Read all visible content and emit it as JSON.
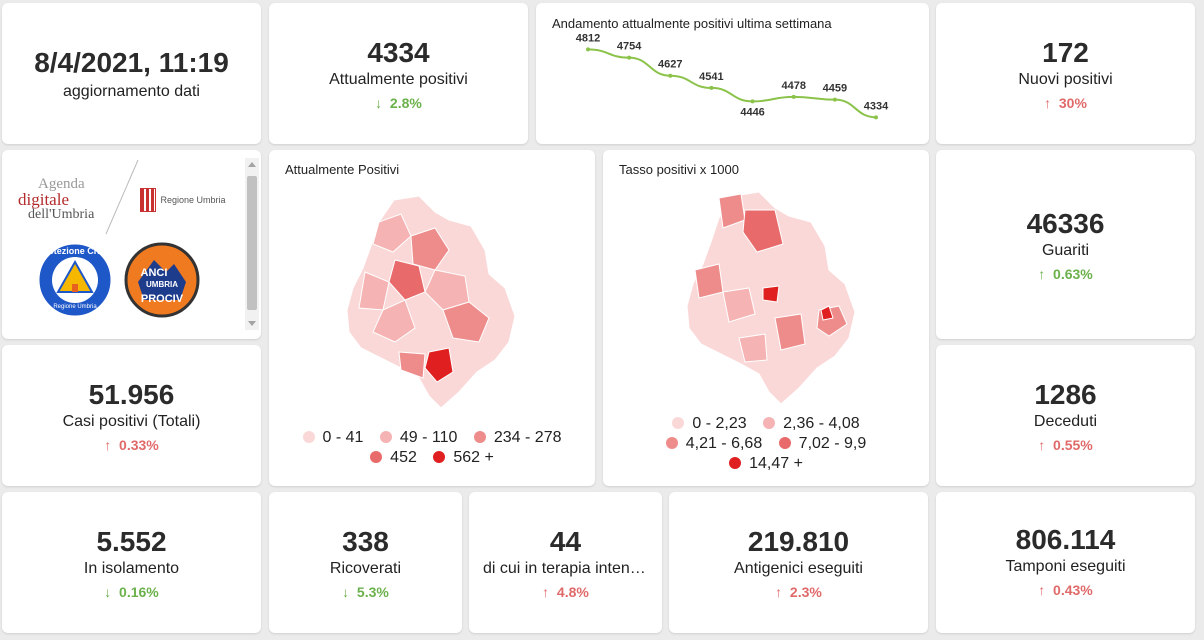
{
  "update": {
    "datetime": "8/4/2021, 11:19",
    "label": "aggiornamento dati"
  },
  "kpis": {
    "attualmente": {
      "value": "4334",
      "label": "Attualmente positivi",
      "change": "2.8%",
      "arrow": "↓"
    },
    "nuovi": {
      "value": "172",
      "label": "Nuovi positivi",
      "change": "30%",
      "arrow": "↑"
    },
    "guariti": {
      "value": "46336",
      "label": "Guariti",
      "change": "0.63%",
      "arrow": "↑"
    },
    "casi": {
      "value": "51.956",
      "label": "Casi positivi (Totali)",
      "change": "0.33%",
      "arrow": "↑"
    },
    "deceduti": {
      "value": "1286",
      "label": "Deceduti",
      "change": "0.55%",
      "arrow": "↑"
    },
    "isolamento": {
      "value": "5.552",
      "label": "In isolamento",
      "change": "0.16%",
      "arrow": "↓"
    },
    "ricoverati": {
      "value": "338",
      "label": "Ricoverati",
      "change": "5.3%",
      "arrow": "↓"
    },
    "terapia": {
      "value": "44",
      "label": "di cui in terapia intensiva",
      "change": "4.8%",
      "arrow": "↑"
    },
    "antigenici": {
      "value": "219.810",
      "label": "Antigenici eseguiti",
      "change": "2.3%",
      "arrow": "↑"
    },
    "tamponi": {
      "value": "806.114",
      "label": "Tamponi eseguiti",
      "change": "0.43%",
      "arrow": "↑"
    }
  },
  "chart_data": {
    "type": "line",
    "title": "Andamento attualmente positivi ultima settimana",
    "x": [
      1,
      2,
      3,
      4,
      5,
      6,
      7,
      8
    ],
    "values": [
      4812,
      4754,
      4627,
      4541,
      4446,
      4478,
      4459,
      4334
    ],
    "labels": [
      "4812",
      "4754",
      "4627",
      "4541",
      "4446",
      "4478",
      "4459",
      "4334"
    ],
    "color": "#8bc34a",
    "grid": false
  },
  "logos": {
    "agenda_line1": "Agenda",
    "agenda_line2": "digitale",
    "agenda_line3": "dell'Umbria",
    "regione": "Regione Umbria",
    "protezione": "Protezione Civile",
    "protezione_sub": "Regione Umbria",
    "anci1": "ANCI",
    "anci2": "UMBRIA",
    "anci3": "PROCIV"
  },
  "map1": {
    "title": "Attualmente Positivi",
    "legend": [
      {
        "label": "0 - 41",
        "color": "#fbd8d8"
      },
      {
        "label": "49 - 110",
        "color": "#f6b3b3"
      },
      {
        "label": "234 - 278",
        "color": "#ee8c8c"
      },
      {
        "label": "452",
        "color": "#e86a6a"
      },
      {
        "label": "562 +",
        "color": "#e02020"
      }
    ]
  },
  "map2": {
    "title": "Tasso positivi x 1000",
    "legend": [
      {
        "label": "0 - 2,23",
        "color": "#fbd8d8"
      },
      {
        "label": "2,36 - 4,08",
        "color": "#f6b3b3"
      },
      {
        "label": "4,21 - 6,68",
        "color": "#ee8c8c"
      },
      {
        "label": "7,02 - 9,9",
        "color": "#e86a6a"
      },
      {
        "label": "14,47 +",
        "color": "#e02020"
      }
    ]
  }
}
